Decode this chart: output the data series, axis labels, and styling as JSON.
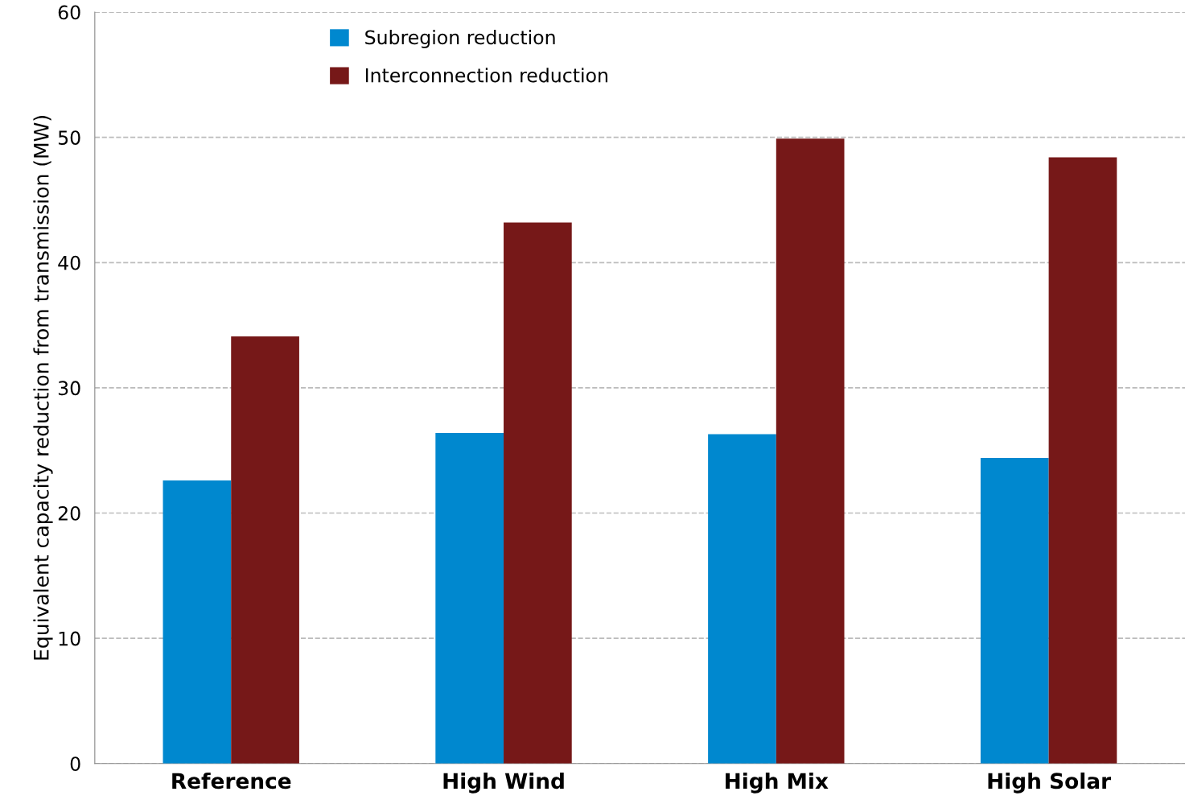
{
  "chart_data": {
    "type": "bar",
    "ylabel": "Equivalent capacity reduction from transmission (MW)",
    "categories": [
      "Reference",
      "High Wind",
      "High Mix",
      "High Solar"
    ],
    "series": [
      {
        "name": "Subregion reduction",
        "color": "#0088cf",
        "values": [
          22.6,
          26.4,
          26.3,
          24.4
        ]
      },
      {
        "name": "Interconnection reduction",
        "color": "#761818",
        "values": [
          34.1,
          43.2,
          49.9,
          48.4
        ]
      }
    ],
    "ylim": [
      0,
      60
    ],
    "yticks": [
      0,
      10,
      20,
      30,
      40,
      50,
      60
    ],
    "grid": "y",
    "legend": "top left"
  }
}
